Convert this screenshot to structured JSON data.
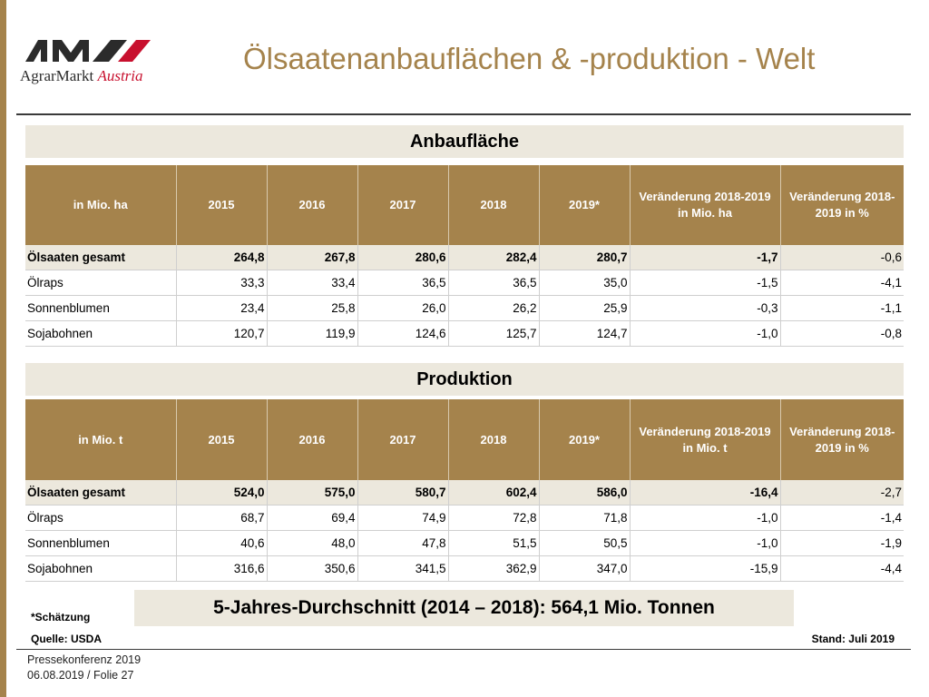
{
  "header": {
    "logo_main": "AgrarMarkt",
    "logo_accent": "Austria",
    "title": "Ölsaatenanbauflächen & -produktion - Welt"
  },
  "area": {
    "section_title": "Anbaufläche",
    "columns": [
      "in Mio. ha",
      "2015",
      "2016",
      "2017",
      "2018",
      "2019*",
      "Veränderung 2018-2019 in Mio. ha",
      "Veränderung 2018-2019 in %"
    ],
    "rows": [
      [
        "Ölsaaten gesamt",
        "264,8",
        "267,8",
        "280,6",
        "282,4",
        "280,7",
        "-1,7",
        "-0,6"
      ],
      [
        "Ölraps",
        "33,3",
        "33,4",
        "36,5",
        "36,5",
        "35,0",
        "-1,5",
        "-4,1"
      ],
      [
        "Sonnenblumen",
        "23,4",
        "25,8",
        "26,0",
        "26,2",
        "25,9",
        "-0,3",
        "-1,1"
      ],
      [
        "Sojabohnen",
        "120,7",
        "119,9",
        "124,6",
        "125,7",
        "124,7",
        "-1,0",
        "-0,8"
      ]
    ]
  },
  "production": {
    "section_title": "Produktion",
    "columns": [
      "in Mio. t",
      "2015",
      "2016",
      "2017",
      "2018",
      "2019*",
      "Veränderung 2018-2019 in Mio. t",
      "Veränderung 2018-2019 in %"
    ],
    "rows": [
      [
        "Ölsaaten gesamt",
        "524,0",
        "575,0",
        "580,7",
        "602,4",
        "586,0",
        "-16,4",
        "-2,7"
      ],
      [
        "Ölraps",
        "68,7",
        "69,4",
        "74,9",
        "72,8",
        "71,8",
        "-1,0",
        "-1,4"
      ],
      [
        "Sonnenblumen",
        "40,6",
        "48,0",
        "47,8",
        "51,5",
        "50,5",
        "-1,0",
        "-1,9"
      ],
      [
        "Sojabohnen",
        "316,6",
        "350,6",
        "341,5",
        "362,9",
        "347,0",
        "-15,9",
        "-4,4"
      ]
    ]
  },
  "average_box": "5-Jahres-Durchschnitt (2014 – 2018): 564,1 Mio. Tonnen",
  "notes": {
    "estimate": "*Schätzung",
    "source": "Quelle: USDA",
    "stand": "Stand: Juli 2019"
  },
  "footer": {
    "line1": "Pressekonferenz 2019",
    "line2": "06.08.2019 / Folie 27"
  },
  "colors": {
    "accent": "#a5834c",
    "light_band": "#ece8dd",
    "logo_red": "#c8102e"
  }
}
